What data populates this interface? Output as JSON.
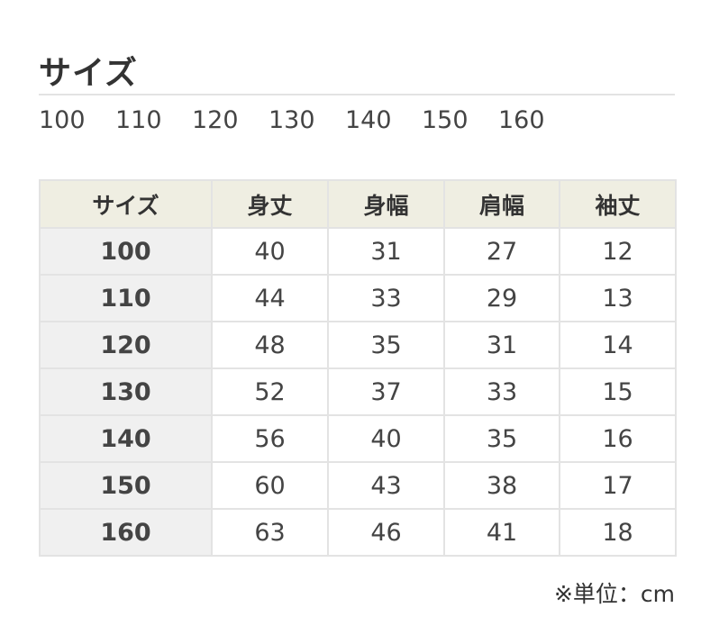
{
  "title": "サイズ",
  "sizes": [
    "100",
    "110",
    "120",
    "130",
    "140",
    "150",
    "160"
  ],
  "table": {
    "headers": [
      "サイズ",
      "身丈",
      "身幅",
      "肩幅",
      "袖丈"
    ],
    "rows": [
      [
        "100",
        "40",
        "31",
        "27",
        "12"
      ],
      [
        "110",
        "44",
        "33",
        "29",
        "13"
      ],
      [
        "120",
        "48",
        "35",
        "31",
        "14"
      ],
      [
        "130",
        "52",
        "37",
        "33",
        "15"
      ],
      [
        "140",
        "56",
        "40",
        "35",
        "16"
      ],
      [
        "150",
        "60",
        "43",
        "38",
        "17"
      ],
      [
        "160",
        "63",
        "46",
        "41",
        "18"
      ]
    ]
  },
  "unit_note": "※単位：cm"
}
